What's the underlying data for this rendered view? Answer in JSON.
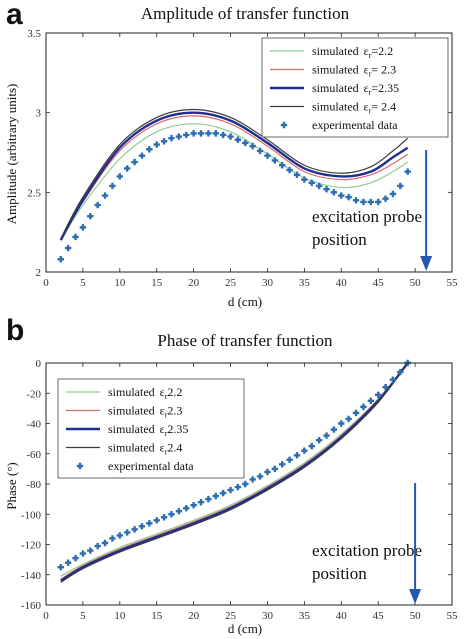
{
  "colors": {
    "sim_22": "#8fcc8f",
    "sim_23": "#d96a6a",
    "sim_235": "#1f2f8f",
    "sim_24": "#3c3c3c",
    "experimental": "#2c6fb0",
    "arrow": "#2457b3"
  },
  "chart_data": [
    {
      "panel": "a",
      "type": "line",
      "title": "Amplitude of transfer function",
      "xlabel": "d (cm)",
      "ylabel": "Amplitude (arbitrary units)",
      "xlim": [
        0,
        55
      ],
      "ylim": [
        2,
        3.5
      ],
      "xticks": [
        0,
        5,
        10,
        15,
        20,
        25,
        30,
        35,
        40,
        45,
        50,
        55
      ],
      "yticks": [
        2,
        2.5,
        3,
        3.5
      ],
      "ytick_labels": [
        "2",
        "2.5",
        "3",
        "3.5"
      ],
      "grid": false,
      "legend_position": "top-right",
      "legend": [
        {
          "prefix": "simulated",
          "eps_sub": "r",
          "value": "=2.2",
          "key": "sim_22"
        },
        {
          "prefix": "simulated",
          "eps_sub": "r",
          "value": "= 2.3",
          "key": "sim_23"
        },
        {
          "prefix": "simulated",
          "eps_sub": "r",
          "value": "=2.35",
          "key": "sim_235"
        },
        {
          "prefix": "simulated",
          "eps_sub": "r",
          "value": "= 2.4",
          "key": "sim_24"
        },
        {
          "prefix": "experimental data",
          "eps_sub": "",
          "value": "",
          "key": "experimental"
        }
      ],
      "annotation": [
        "excitation probe",
        "position"
      ],
      "arrow_x": 51.5,
      "series": [
        {
          "name": "simulated εr=2.2",
          "key": "sim_22",
          "width": 1.2,
          "x": [
            2,
            5,
            10,
            15,
            20,
            25,
            30,
            35,
            40,
            44,
            47,
            49
          ],
          "y": [
            2.2,
            2.42,
            2.71,
            2.88,
            2.93,
            2.88,
            2.74,
            2.59,
            2.53,
            2.56,
            2.63,
            2.69
          ]
        },
        {
          "name": "simulated εr= 2.3",
          "key": "sim_23",
          "width": 1.2,
          "x": [
            2,
            5,
            10,
            15,
            20,
            25,
            30,
            35,
            40,
            44,
            47,
            49
          ],
          "y": [
            2.2,
            2.44,
            2.76,
            2.93,
            2.98,
            2.93,
            2.79,
            2.63,
            2.58,
            2.61,
            2.68,
            2.74
          ]
        },
        {
          "name": "simulated εr=2.35",
          "key": "sim_235",
          "width": 2.4,
          "x": [
            2,
            5,
            10,
            15,
            20,
            25,
            30,
            35,
            40,
            44,
            47,
            49
          ],
          "y": [
            2.2,
            2.45,
            2.78,
            2.95,
            3.0,
            2.95,
            2.81,
            2.65,
            2.6,
            2.63,
            2.72,
            2.78
          ]
        },
        {
          "name": "simulated εr= 2.4",
          "key": "sim_24",
          "width": 1.2,
          "x": [
            2,
            5,
            10,
            15,
            20,
            25,
            30,
            35,
            40,
            44,
            47,
            49
          ],
          "y": [
            2.21,
            2.47,
            2.8,
            2.97,
            3.02,
            2.97,
            2.83,
            2.67,
            2.62,
            2.66,
            2.76,
            2.84
          ]
        }
      ],
      "experimental": {
        "x": [
          2,
          3,
          4,
          5,
          6,
          7,
          8,
          9,
          10,
          11,
          12,
          13,
          14,
          15,
          16,
          17,
          18,
          19,
          20,
          21,
          22,
          23,
          24,
          25,
          26,
          27,
          28,
          29,
          30,
          31,
          32,
          33,
          34,
          35,
          36,
          37,
          38,
          39,
          40,
          41,
          42,
          43,
          44,
          45,
          46,
          47,
          48,
          49
        ],
        "y": [
          2.08,
          2.15,
          2.22,
          2.28,
          2.35,
          2.42,
          2.48,
          2.54,
          2.6,
          2.65,
          2.69,
          2.73,
          2.77,
          2.8,
          2.82,
          2.84,
          2.85,
          2.86,
          2.87,
          2.87,
          2.87,
          2.87,
          2.86,
          2.85,
          2.83,
          2.81,
          2.79,
          2.76,
          2.73,
          2.7,
          2.67,
          2.64,
          2.61,
          2.58,
          2.56,
          2.54,
          2.52,
          2.5,
          2.48,
          2.47,
          2.45,
          2.44,
          2.44,
          2.44,
          2.46,
          2.49,
          2.54,
          2.63
        ]
      }
    },
    {
      "panel": "b",
      "type": "line",
      "title": "Phase of transfer function",
      "xlabel": "d (cm)",
      "ylabel": "Phase (°)",
      "xlim": [
        0,
        55
      ],
      "ylim": [
        -160,
        0
      ],
      "xticks": [
        0,
        5,
        10,
        15,
        20,
        25,
        30,
        35,
        40,
        45,
        50,
        55
      ],
      "yticks": [
        -160,
        -140,
        -120,
        -100,
        -80,
        -60,
        -40,
        -20,
        0
      ],
      "ytick_labels": [
        "-160",
        "-140",
        "-120",
        "-100",
        "-80",
        "-60",
        "-40",
        "-20",
        "0"
      ],
      "grid": false,
      "legend_position": "top-left",
      "legend": [
        {
          "prefix": "simulated",
          "eps_sub": "r",
          "value": "2.2",
          "key": "sim_22"
        },
        {
          "prefix": "simulated",
          "eps_sub": "r",
          "value": "2.3",
          "key": "sim_23"
        },
        {
          "prefix": "simulated",
          "eps_sub": "r",
          "value": "2.35",
          "key": "sim_235"
        },
        {
          "prefix": "simulated",
          "eps_sub": "r",
          "value": "2.4",
          "key": "sim_24"
        },
        {
          "prefix": "experimental data",
          "eps_sub": "",
          "value": "",
          "key": "experimental"
        }
      ],
      "annotation": [
        "excitation probe",
        "position"
      ],
      "arrow_x": 50,
      "series": [
        {
          "name": "simulated εr 2.2",
          "key": "sim_22",
          "width": 1.2,
          "x": [
            2,
            5,
            10,
            15,
            20,
            25,
            30,
            35,
            40,
            45,
            49
          ],
          "y": [
            -141,
            -133,
            -122,
            -113,
            -104,
            -94,
            -81,
            -66,
            -47,
            -24,
            0
          ]
        },
        {
          "name": "simulated εr 2.3",
          "key": "sim_23",
          "width": 1.2,
          "x": [
            2,
            5,
            10,
            15,
            20,
            25,
            30,
            35,
            40,
            45,
            49
          ],
          "y": [
            -143,
            -134,
            -123,
            -114,
            -105,
            -95,
            -82,
            -67,
            -48,
            -24,
            0
          ]
        },
        {
          "name": "simulated εr 2.35",
          "key": "sim_235",
          "width": 2.4,
          "x": [
            2,
            5,
            10,
            15,
            20,
            25,
            30,
            35,
            40,
            45,
            49
          ],
          "y": [
            -144,
            -135,
            -124,
            -115,
            -106,
            -96,
            -83,
            -68,
            -49,
            -25,
            0
          ]
        },
        {
          "name": "simulated εr 2.4",
          "key": "sim_24",
          "width": 1.2,
          "x": [
            2,
            5,
            10,
            15,
            20,
            25,
            30,
            35,
            40,
            45,
            49
          ],
          "y": [
            -145,
            -136,
            -125,
            -116,
            -107,
            -97,
            -84,
            -69,
            -50,
            -26,
            0
          ]
        }
      ],
      "experimental": {
        "x": [
          2,
          3,
          4,
          5,
          6,
          7,
          8,
          9,
          10,
          11,
          12,
          13,
          14,
          15,
          16,
          17,
          18,
          19,
          20,
          21,
          22,
          23,
          24,
          25,
          26,
          27,
          28,
          29,
          30,
          31,
          32,
          33,
          34,
          35,
          36,
          37,
          38,
          39,
          40,
          41,
          42,
          43,
          44,
          45,
          46,
          47,
          48,
          49
        ],
        "y": [
          -135,
          -132,
          -129,
          -126,
          -124,
          -121,
          -119,
          -116,
          -114,
          -112,
          -110,
          -108,
          -106,
          -104,
          -102,
          -100,
          -98,
          -96,
          -94,
          -92,
          -90,
          -88,
          -86,
          -84,
          -82,
          -80,
          -77,
          -75,
          -72,
          -70,
          -67,
          -64,
          -61,
          -58,
          -55,
          -51,
          -48,
          -44,
          -40,
          -37,
          -33,
          -29,
          -25,
          -21,
          -16,
          -11,
          -6,
          0
        ]
      }
    }
  ]
}
